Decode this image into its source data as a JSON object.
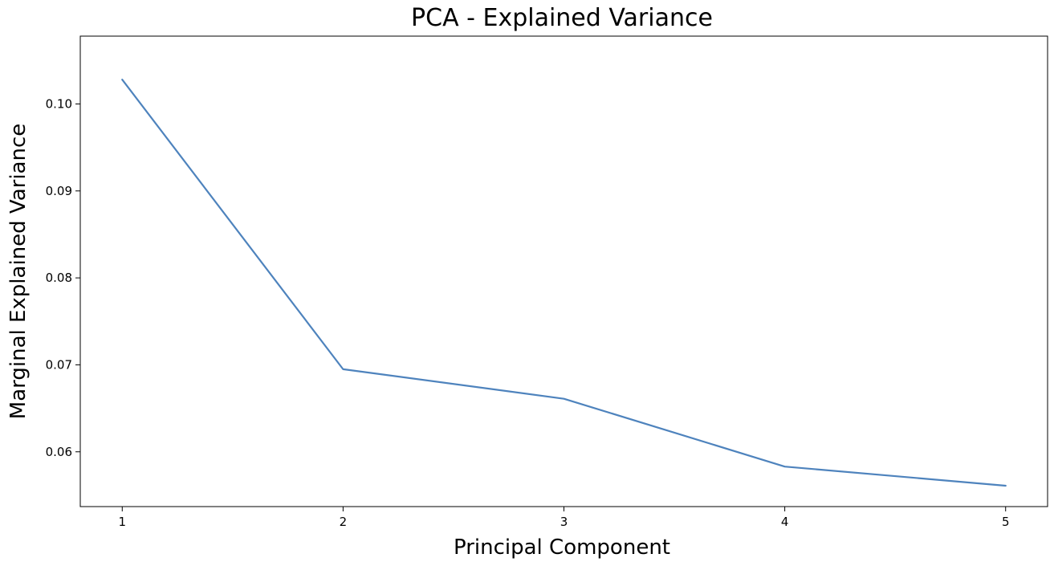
{
  "chart_data": {
    "type": "line",
    "title": "PCA - Explained Variance",
    "xlabel": "Principal Component",
    "ylabel": "Marginal Explained Variance",
    "x": [
      1,
      2,
      3,
      4,
      5
    ],
    "series": [
      {
        "values": [
          0.1028,
          0.0695,
          0.0661,
          0.0583,
          0.0561
        ],
        "color": "#4e83bd"
      }
    ],
    "x_ticks": [
      "1",
      "2",
      "3",
      "4",
      "5"
    ],
    "y_ticks": [
      "0.06",
      "0.07",
      "0.08",
      "0.09",
      "0.10"
    ],
    "xlim": [
      0.81,
      5.19
    ],
    "ylim": [
      0.0537,
      0.1078
    ],
    "grid": false,
    "legend": "none"
  }
}
